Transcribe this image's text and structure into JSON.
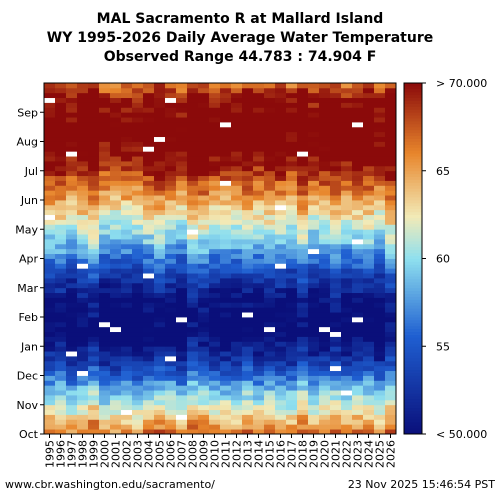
{
  "title_lines": [
    "MAL Sacramento R at Mallard Island",
    "WY 1995-2026 Daily Average Water Temperature",
    "Observed Range 44.783 : 74.904 F"
  ],
  "footer": {
    "url": "www.cbr.washington.edu/sacramento/",
    "timestamp": "23 Nov 2025 15:46:54 PST"
  },
  "chart_data": {
    "type": "heatmap",
    "x_categories": [
      "1995",
      "1996",
      "1997",
      "1998",
      "1999",
      "2000",
      "2001",
      "2002",
      "2003",
      "2004",
      "2005",
      "2006",
      "2007",
      "2008",
      "2009",
      "2010",
      "2011",
      "2012",
      "2013",
      "2014",
      "2015",
      "2016",
      "2017",
      "2018",
      "2019",
      "2020",
      "2021",
      "2022",
      "2023",
      "2024",
      "2025",
      "2026"
    ],
    "y_categories": [
      "Oct",
      "Nov",
      "Dec",
      "Jan",
      "Feb",
      "Mar",
      "Apr",
      "May",
      "Jun",
      "Jul",
      "Aug",
      "Sep"
    ],
    "monthly_typical_temperature_F": [
      64,
      59,
      53,
      49,
      50,
      54,
      59,
      63,
      67,
      71,
      72,
      70
    ],
    "colorbar": {
      "min": 50,
      "max": 70,
      "ticks": [
        {
          "value": 50,
          "label": "< 50.000"
        },
        {
          "value": 55,
          "label": "55"
        },
        {
          "value": 60,
          "label": "60"
        },
        {
          "value": 65,
          "label": "65"
        },
        {
          "value": 70,
          "label": "> 70.000"
        }
      ]
    },
    "colors": {
      "cold": "#0a0f7a",
      "cool": "#1f5fd1",
      "mild": "#8fe0ef",
      "neutral": "#f2eab7",
      "warm": "#e8862c",
      "hot": "#8b0a0a"
    },
    "missing_color": "#ffffff"
  }
}
